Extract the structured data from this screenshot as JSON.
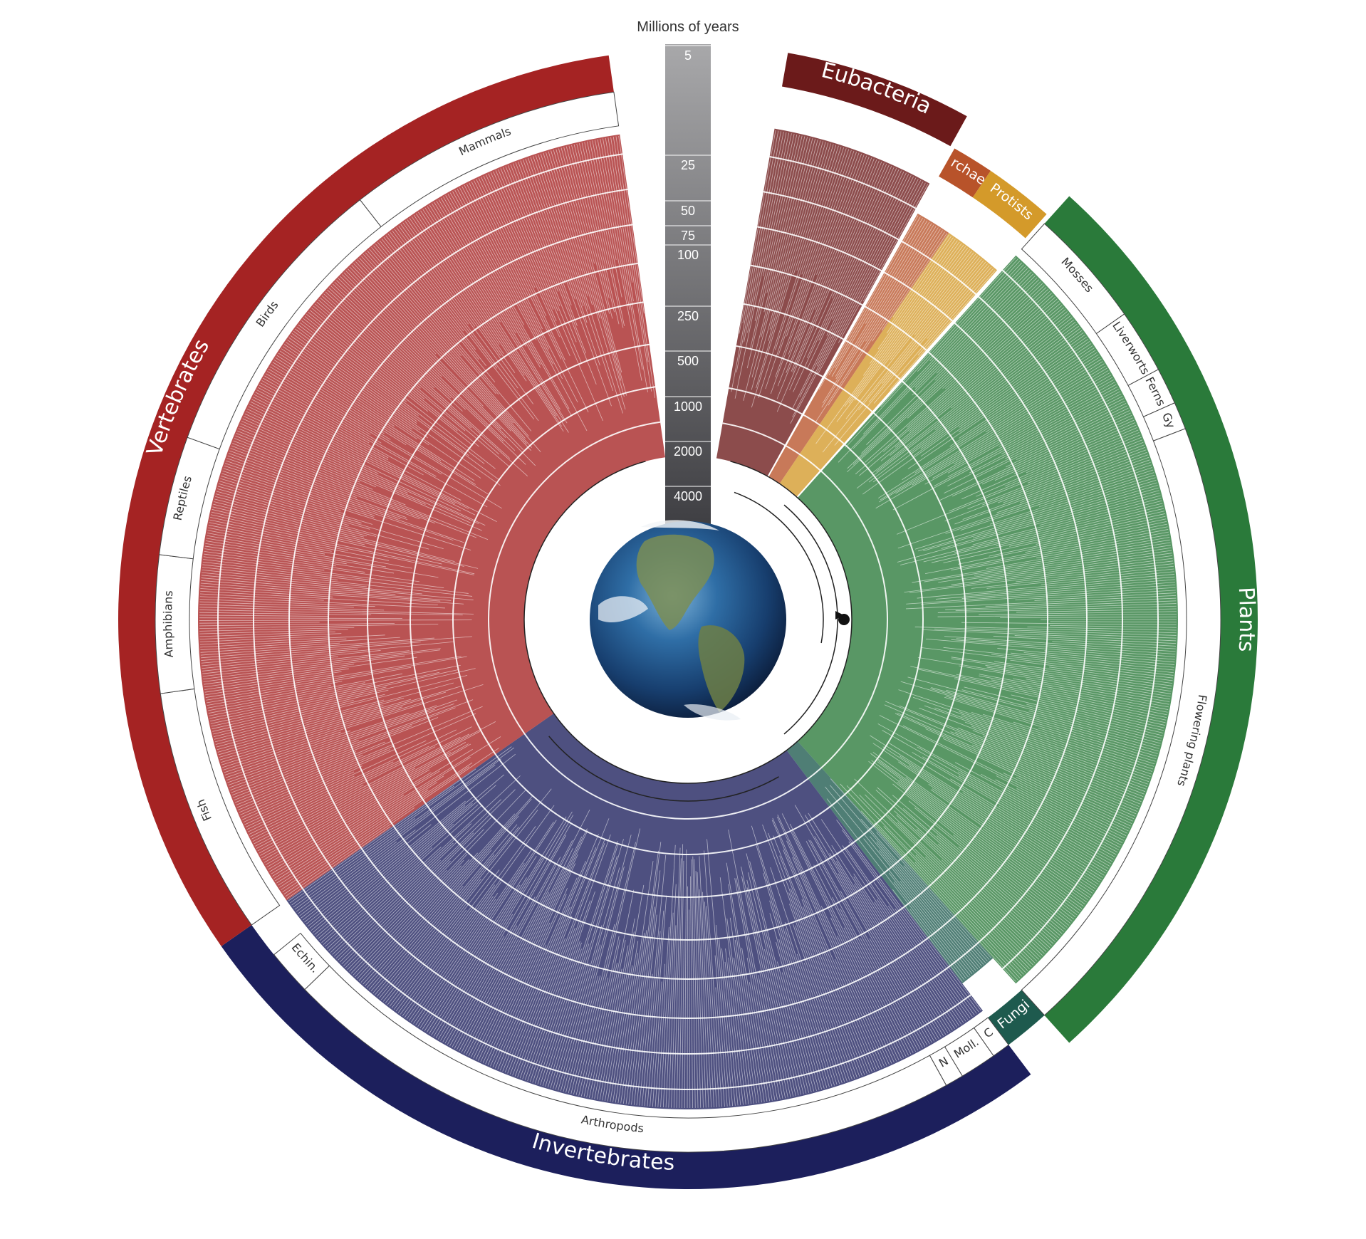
{
  "scale": {
    "title": "Millions of years",
    "ticks": [
      "5",
      "25",
      "50",
      "75",
      "100",
      "250",
      "500",
      "1000",
      "2000",
      "4000"
    ]
  },
  "groups": [
    {
      "key": "eubacteria",
      "label": "Eubacteria",
      "color": "#6b1a1a"
    },
    {
      "key": "archaea",
      "label": "Archae.",
      "color": "#b8532a"
    },
    {
      "key": "protists",
      "label": "Protists",
      "color": "#d49a2a"
    },
    {
      "key": "plants",
      "label": "Plants",
      "color": "#2a7a3a"
    },
    {
      "key": "fungi",
      "label": "Fungi",
      "color": "#1e5a4e"
    },
    {
      "key": "invertebrates",
      "label": "Invertebrates",
      "color": "#1c1f5c"
    },
    {
      "key": "vertebrates",
      "label": "Vertebrates",
      "color": "#a52323"
    }
  ],
  "subgroups": [
    {
      "key": "mosses",
      "label": "Mosses"
    },
    {
      "key": "liverworts",
      "label": "Liverworts"
    },
    {
      "key": "ferns",
      "label": "Ferns"
    },
    {
      "key": "gy",
      "label": "Gy"
    },
    {
      "key": "flowering",
      "label": "Flowering plants"
    },
    {
      "key": "c",
      "label": "C"
    },
    {
      "key": "moll",
      "label": "Moll."
    },
    {
      "key": "n",
      "label": "N"
    },
    {
      "key": "arthropods",
      "label": "Arthropods"
    },
    {
      "key": "echin",
      "label": "Echin."
    },
    {
      "key": "fish",
      "label": "Fish"
    },
    {
      "key": "amphibians",
      "label": "Amphibians"
    },
    {
      "key": "reptiles",
      "label": "Reptiles"
    },
    {
      "key": "birds",
      "label": "Birds"
    },
    {
      "key": "mammals",
      "label": "Mammals"
    }
  ]
}
